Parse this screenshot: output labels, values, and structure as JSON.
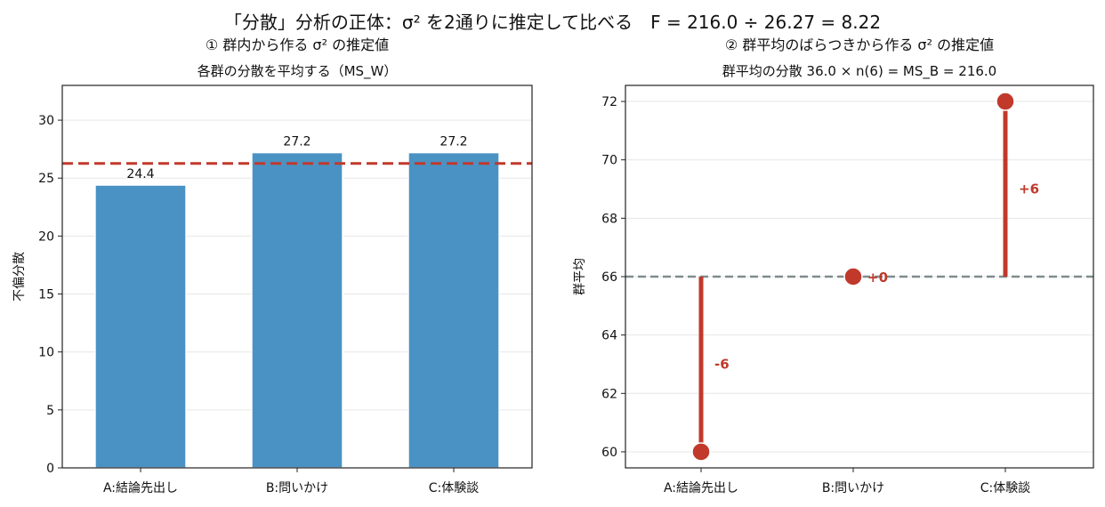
{
  "figure": {
    "suptitle": "「分散」分析の正体：σ² を2通りに推定して比べる　F = 216.0 ÷ 26.27 = 8.22"
  },
  "chart_data": [
    {
      "type": "bar",
      "title": "① 群内から作る σ² の推定値",
      "subtitle": "各群の分散を平均する（MS_W）",
      "xlabel": "",
      "ylabel": "不偏分散",
      "categories": [
        "A:結論先出し",
        "B:問いかけ",
        "C:体験談"
      ],
      "values": [
        24.4,
        27.2,
        27.2
      ],
      "data_labels": [
        "24.4",
        "27.2",
        "27.2"
      ],
      "reference_line": 26.27,
      "ylim": [
        0,
        33
      ],
      "yticks": [
        0,
        5,
        10,
        15,
        20,
        25,
        30
      ],
      "grid": "y",
      "colors": {
        "bar": "#4a92c4",
        "reference": "#c0392b"
      }
    },
    {
      "type": "scatter",
      "title": "② 群平均のばらつきから作る σ² の推定値",
      "subtitle": "群平均の分散 36.0 × n(6) = MS_B = 216.0",
      "xlabel": "",
      "ylabel": "群平均",
      "categories": [
        "A:結論先出し",
        "B:問いかけ",
        "C:体験談"
      ],
      "values": [
        60,
        66,
        72
      ],
      "deviation_labels": [
        "-6",
        "+0",
        "+6"
      ],
      "grand_mean": 66,
      "ylim": [
        59.45,
        72.55
      ],
      "yticks": [
        60,
        62,
        64,
        66,
        68,
        70,
        72
      ],
      "grid": "y",
      "colors": {
        "point": "#c0392b",
        "mean_line": "#7f8c8d"
      }
    }
  ]
}
